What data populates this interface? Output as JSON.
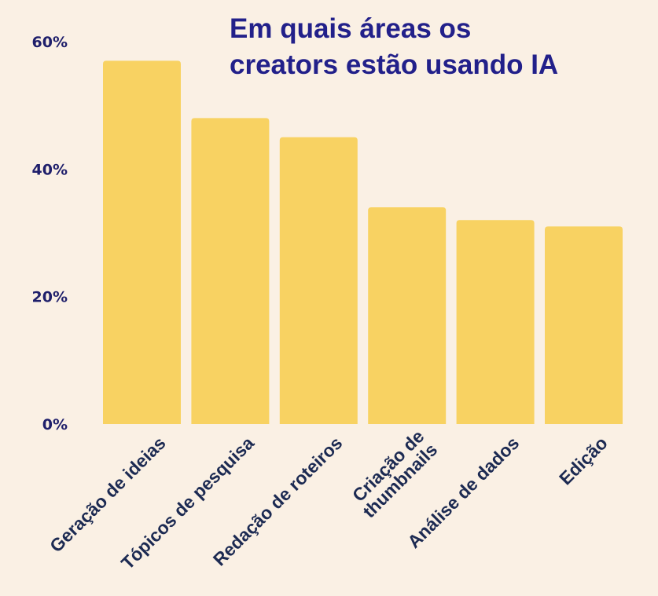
{
  "chart_data": {
    "type": "bar",
    "title_lines": [
      "Em quais áreas os",
      "creators estão usando IA"
    ],
    "categories": [
      [
        "Geração de ideias"
      ],
      [
        "Tópicos de pesquisa"
      ],
      [
        "Redação de roteiros"
      ],
      [
        "Criação de",
        "thumbnails"
      ],
      [
        "Análise de dados"
      ],
      [
        "Edição"
      ]
    ],
    "values": [
      57,
      48,
      45,
      34,
      32,
      31
    ],
    "y_ticks": [
      {
        "value": 0,
        "label": "0%"
      },
      {
        "value": 20,
        "label": "20%"
      },
      {
        "value": 40,
        "label": "40%"
      },
      {
        "value": 60,
        "label": "60%"
      }
    ],
    "ylim": [
      0,
      60
    ],
    "xlabel": "",
    "ylabel": "",
    "grid": false,
    "legend": "none",
    "colors": {
      "bar": "#f8d262",
      "title": "#22208a",
      "axis_text": "#1f1f6b",
      "category_text": "#1c2a52",
      "background": "#faf0e4"
    }
  }
}
